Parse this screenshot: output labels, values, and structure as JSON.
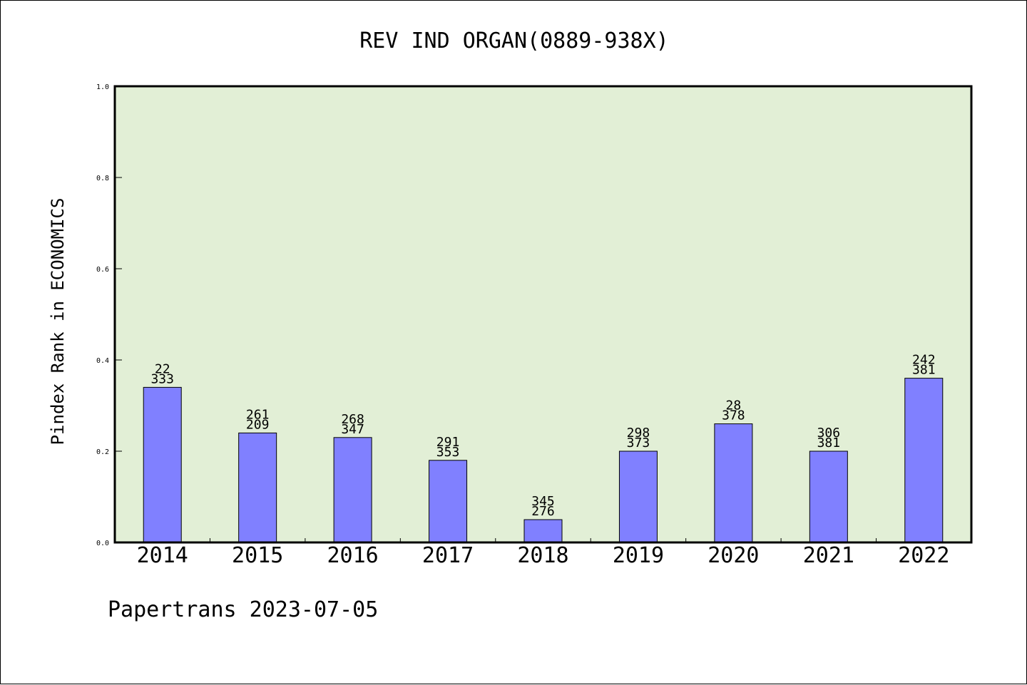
{
  "chart_data": {
    "type": "bar",
    "title": "REV IND ORGAN(0889-938X)",
    "ylabel": "Pindex Rank in ECONOMICS",
    "xlabel": "",
    "ylim": [
      0,
      1.0
    ],
    "yticks": [
      "0.0",
      "0.2",
      "0.4",
      "0.6",
      "0.8",
      "1.0"
    ],
    "categories": [
      "2014",
      "2015",
      "2016",
      "2017",
      "2018",
      "2019",
      "2020",
      "2021",
      "2022"
    ],
    "values": [
      0.34,
      0.24,
      0.23,
      0.18,
      0.05,
      0.2,
      0.26,
      0.2,
      0.36
    ],
    "labels_top": [
      "22",
      "261",
      "268",
      "291",
      "345",
      "298",
      "28",
      "306",
      "242"
    ],
    "labels_bottom": [
      "333",
      "209",
      "347",
      "353",
      "276",
      "373",
      "378",
      "381",
      "381"
    ],
    "grid": false,
    "legend": "none",
    "colors": {
      "plot_background": "#e2efd6",
      "bar_fill": "#8080ff",
      "bar_stroke": "#000000",
      "axis": "#000000"
    }
  },
  "footer": {
    "text": "Papertrans 2023-07-05"
  }
}
